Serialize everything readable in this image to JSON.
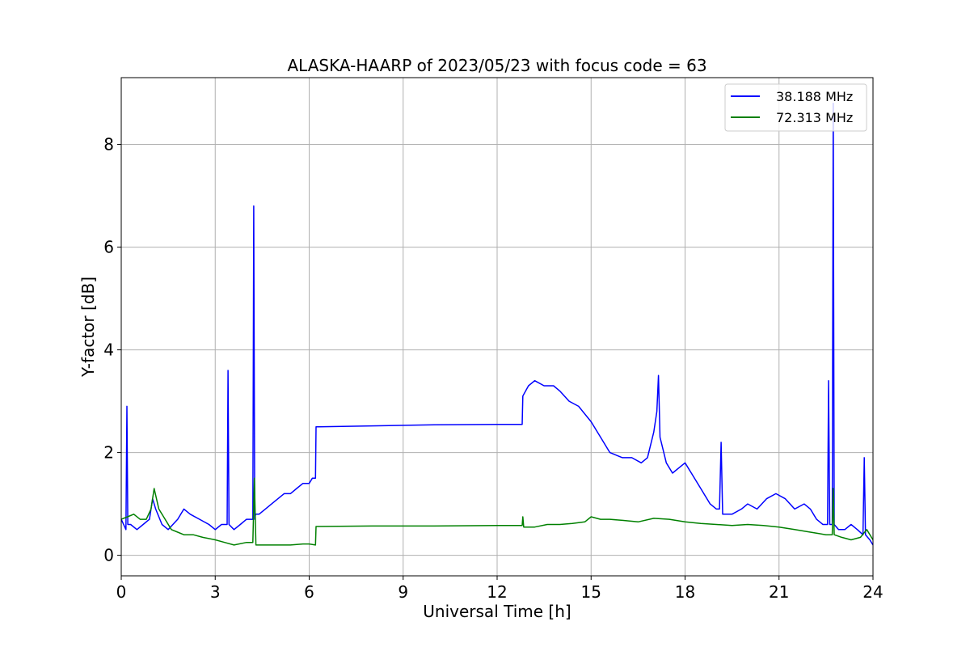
{
  "chart_data": {
    "type": "line",
    "title": "ALASKA-HAARP of 2023/05/23 with focus code = 63",
    "xlabel": "Universal Time [h]",
    "ylabel": "Y-factor [dB]",
    "xlim": [
      0,
      24
    ],
    "ylim": [
      -0.4,
      9.3
    ],
    "xticks": [
      0,
      3,
      6,
      9,
      12,
      15,
      18,
      21,
      24
    ],
    "xtick_labels": [
      "0",
      "3",
      "6",
      "9",
      "12",
      "15",
      "18",
      "21",
      "24"
    ],
    "yticks": [
      0,
      2,
      4,
      6,
      8
    ],
    "ytick_labels": [
      "0",
      "2",
      "4",
      "6",
      "8"
    ],
    "grid": true,
    "legend_position": "top-right",
    "series": [
      {
        "name": "38.188 MHz",
        "color": "#0000ff",
        "x": [
          0,
          0.15,
          0.18,
          0.21,
          0.3,
          0.5,
          0.7,
          0.9,
          1.0,
          1.1,
          1.3,
          1.5,
          1.8,
          2.0,
          2.2,
          2.5,
          2.8,
          3.0,
          3.2,
          3.38,
          3.41,
          3.44,
          3.6,
          3.8,
          4.0,
          4.2,
          4.23,
          4.26,
          4.29,
          4.4,
          4.6,
          4.8,
          5.0,
          5.2,
          5.4,
          5.6,
          5.8,
          6.0,
          6.1,
          6.2,
          6.22,
          6.25,
          6.3,
          8.0,
          10.0,
          12.0,
          12.8,
          12.82,
          13.0,
          13.2,
          13.5,
          13.8,
          14.0,
          14.3,
          14.6,
          15.0,
          15.3,
          15.6,
          16.0,
          16.3,
          16.6,
          16.8,
          17.0,
          17.1,
          17.15,
          17.2,
          17.4,
          17.6,
          17.8,
          18.0,
          18.2,
          18.5,
          18.8,
          19.0,
          19.1,
          19.15,
          19.2,
          19.5,
          19.8,
          20.0,
          20.3,
          20.6,
          20.9,
          21.2,
          21.5,
          21.8,
          22.0,
          22.2,
          22.4,
          22.55,
          22.58,
          22.62,
          22.7,
          22.73,
          22.76,
          22.9,
          23.1,
          23.3,
          23.5,
          23.68,
          23.72,
          23.76,
          23.9,
          24.0
        ],
        "y": [
          0.7,
          0.5,
          2.9,
          0.6,
          0.6,
          0.5,
          0.6,
          0.7,
          1.1,
          0.9,
          0.6,
          0.5,
          0.7,
          0.9,
          0.8,
          0.7,
          0.6,
          0.5,
          0.6,
          0.6,
          3.6,
          0.6,
          0.5,
          0.6,
          0.7,
          0.7,
          6.8,
          0.7,
          0.8,
          0.8,
          0.9,
          1.0,
          1.1,
          1.2,
          1.2,
          1.3,
          1.4,
          1.4,
          1.5,
          1.5,
          2.5,
          2.5,
          2.5,
          2.52,
          2.54,
          2.55,
          2.55,
          3.1,
          3.3,
          3.4,
          3.3,
          3.3,
          3.2,
          3.0,
          2.9,
          2.6,
          2.3,
          2.0,
          1.9,
          1.9,
          1.8,
          1.9,
          2.4,
          2.8,
          3.5,
          2.3,
          1.8,
          1.6,
          1.7,
          1.8,
          1.6,
          1.3,
          1.0,
          0.9,
          0.9,
          2.2,
          0.8,
          0.8,
          0.9,
          1.0,
          0.9,
          1.1,
          1.2,
          1.1,
          0.9,
          1.0,
          0.9,
          0.7,
          0.6,
          0.6,
          3.4,
          0.6,
          0.6,
          8.8,
          0.6,
          0.5,
          0.5,
          0.6,
          0.5,
          0.4,
          1.9,
          0.4,
          0.3,
          0.2
        ]
      },
      {
        "name": "72.313 MHz",
        "color": "#008000",
        "x": [
          0,
          0.2,
          0.4,
          0.6,
          0.8,
          0.95,
          1.05,
          1.2,
          1.4,
          1.6,
          1.8,
          2.0,
          2.3,
          2.6,
          3.0,
          3.3,
          3.6,
          4.0,
          4.2,
          4.25,
          4.3,
          4.6,
          5.0,
          5.4,
          5.8,
          6.0,
          6.2,
          6.22,
          6.25,
          8.0,
          10.0,
          12.0,
          12.8,
          12.82,
          12.85,
          13.2,
          13.6,
          14.0,
          14.4,
          14.8,
          15.0,
          15.3,
          15.6,
          16.0,
          16.5,
          17.0,
          17.5,
          18.0,
          18.5,
          19.0,
          19.5,
          20.0,
          20.5,
          21.0,
          21.5,
          22.0,
          22.5,
          22.7,
          22.73,
          22.76,
          23.0,
          23.3,
          23.6,
          23.8,
          24.0
        ],
        "y": [
          0.7,
          0.75,
          0.8,
          0.7,
          0.7,
          0.9,
          1.3,
          0.9,
          0.7,
          0.5,
          0.45,
          0.4,
          0.4,
          0.35,
          0.3,
          0.25,
          0.2,
          0.25,
          0.25,
          1.5,
          0.2,
          0.2,
          0.2,
          0.2,
          0.22,
          0.22,
          0.2,
          0.56,
          0.56,
          0.57,
          0.57,
          0.58,
          0.58,
          0.75,
          0.55,
          0.55,
          0.6,
          0.6,
          0.62,
          0.65,
          0.75,
          0.7,
          0.7,
          0.68,
          0.65,
          0.72,
          0.7,
          0.65,
          0.62,
          0.6,
          0.58,
          0.6,
          0.58,
          0.55,
          0.5,
          0.45,
          0.4,
          0.4,
          1.3,
          0.4,
          0.35,
          0.3,
          0.35,
          0.5,
          0.3
        ]
      }
    ]
  }
}
